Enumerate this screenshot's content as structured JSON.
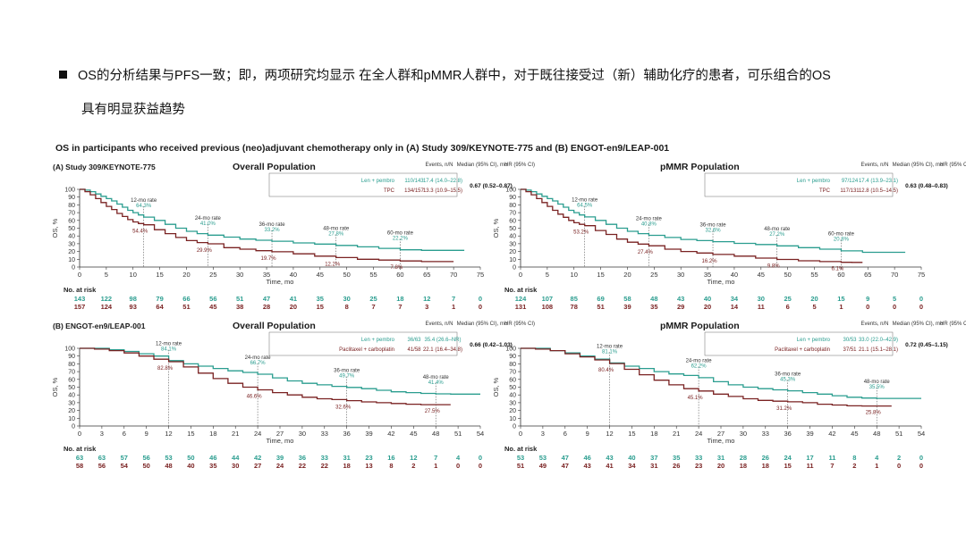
{
  "slide": {
    "bullet_line1": "OS的分析结果与PFS一致；即，两项研究均显示 在全人群和pMMR人群中，对于既往接受过（新）辅助化疗的患者，可乐组合的OS",
    "bullet_line2": "具有明显获益趋势"
  },
  "figure": {
    "title": "OS in participants who received previous (neo)adjuvant chemotherapy only in (A) Study 309/KEYNOTE-775 and (B) ENGOT-en9/LEAP-001",
    "study_a_label": "(A) Study 309/KEYNOTE-775",
    "study_b_label": "(B) ENGOT-en9/LEAP-001"
  },
  "colors": {
    "lenpembro": "#2a9d8f",
    "control": "#7a2222",
    "axis": "#333333",
    "guide": "#555555"
  },
  "chart_data": [
    {
      "type": "line",
      "title": "Overall Population",
      "ylabel": "OS, %",
      "xlabel": "Time, mo",
      "xlim": [
        0,
        75
      ],
      "ylim": [
        0,
        100
      ],
      "xticks": [
        0,
        5,
        10,
        15,
        20,
        25,
        30,
        35,
        40,
        45,
        50,
        55,
        60,
        65,
        70,
        75
      ],
      "yticks": [
        0,
        10,
        20,
        30,
        40,
        50,
        60,
        70,
        80,
        90,
        100
      ],
      "table_header": {
        "events": "Events, n/N",
        "median": "Median (95% CI), mo",
        "hr": "HR (95% CI)"
      },
      "hr": "0.67 (0.52–0.87)",
      "landmarks": [
        {
          "label": "12-mo rate",
          "x": 12,
          "lp": "64.3%",
          "ctrl": "54.4%"
        },
        {
          "label": "24-mo rate",
          "x": 24,
          "lp": "41.0%",
          "ctrl": "29.9%"
        },
        {
          "label": "36-mo rate",
          "x": 36,
          "lp": "33.2%",
          "ctrl": "19.7%"
        },
        {
          "label": "48-mo rate",
          "x": 48,
          "lp": "27.8%",
          "ctrl": "12.2%"
        },
        {
          "label": "60-mo rate",
          "x": 60,
          "lp": "22.2%",
          "ctrl": "7.8%"
        }
      ],
      "series": [
        {
          "name": "Len + pembro",
          "events": "110/143",
          "median": "17.4 (14.0–22.8)",
          "x": [
            0,
            1,
            2,
            3,
            4,
            5,
            6,
            7,
            8,
            9,
            10,
            11,
            12,
            14,
            16,
            18,
            20,
            22,
            24,
            27,
            30,
            33,
            36,
            40,
            44,
            48,
            52,
            56,
            60,
            64,
            68,
            72
          ],
          "y": [
            100,
            99,
            97,
            94,
            91,
            88,
            85,
            81,
            77,
            73,
            70,
            67,
            64.3,
            60,
            55,
            50,
            46,
            43,
            41,
            38.5,
            36,
            34.5,
            33.2,
            31,
            29.5,
            27.8,
            26,
            24,
            22.2,
            21.5,
            21.5,
            21.5
          ],
          "risk": [
            143,
            122,
            98,
            79,
            66,
            56,
            51,
            47,
            41,
            35,
            30,
            25,
            18,
            12,
            7,
            0
          ]
        },
        {
          "name": "TPC",
          "events": "134/157",
          "median": "13.3 (10.9–15.5)",
          "x": [
            0,
            1,
            2,
            3,
            4,
            5,
            6,
            7,
            8,
            9,
            10,
            11,
            12,
            14,
            16,
            18,
            20,
            22,
            24,
            27,
            30,
            33,
            36,
            40,
            44,
            48,
            52,
            56,
            60,
            64,
            68,
            70
          ],
          "y": [
            100,
            97,
            93,
            88,
            83,
            78,
            74,
            69,
            65,
            61,
            58,
            56,
            54.4,
            48,
            43,
            38,
            34,
            31.5,
            29.9,
            25,
            23,
            21,
            19.7,
            17,
            14,
            12.2,
            10,
            9,
            7.8,
            7,
            7,
            7
          ],
          "risk": [
            157,
            124,
            93,
            64,
            51,
            45,
            38,
            28,
            20,
            15,
            8,
            7,
            7,
            3,
            1,
            0
          ]
        }
      ]
    },
    {
      "type": "line",
      "title": "pMMR Population",
      "ylabel": "OS, %",
      "xlabel": "Time, mo",
      "xlim": [
        0,
        75
      ],
      "ylim": [
        0,
        100
      ],
      "xticks": [
        0,
        5,
        10,
        15,
        20,
        25,
        30,
        35,
        40,
        45,
        50,
        55,
        60,
        65,
        70,
        75
      ],
      "yticks": [
        0,
        10,
        20,
        30,
        40,
        50,
        60,
        70,
        80,
        90,
        100
      ],
      "table_header": {
        "events": "Events, n/N",
        "median": "Median (95% CI), mo",
        "hr": "HR (95% CI)"
      },
      "hr": "0.63 (0.48–0.83)",
      "landmarks": [
        {
          "label": "12-mo rate",
          "x": 12,
          "lp": "64.5%",
          "ctrl": "53.2%"
        },
        {
          "label": "24-mo rate",
          "x": 24,
          "lp": "40.8%",
          "ctrl": "27.4%"
        },
        {
          "label": "36-mo rate",
          "x": 36,
          "lp": "32.6%",
          "ctrl": "16.2%"
        },
        {
          "label": "48-mo rate",
          "x": 48,
          "lp": "27.2%",
          "ctrl": "9.8%"
        },
        {
          "label": "60-mo rate",
          "x": 60,
          "lp": "20.8%",
          "ctrl": "6.1%"
        }
      ],
      "series": [
        {
          "name": "Len + pembro",
          "events": "97/124",
          "median": "17.4 (13.9–23.1)",
          "x": [
            0,
            1,
            2,
            3,
            4,
            5,
            6,
            7,
            8,
            9,
            10,
            11,
            12,
            14,
            16,
            18,
            20,
            22,
            24,
            27,
            30,
            33,
            36,
            40,
            44,
            48,
            52,
            56,
            60,
            64,
            68,
            72
          ],
          "y": [
            100,
            99,
            97,
            94,
            91,
            88,
            85,
            81,
            77,
            73,
            70,
            67,
            64.5,
            60,
            55,
            50,
            46,
            43,
            40.8,
            38,
            35.5,
            34,
            32.6,
            30.5,
            29,
            27.2,
            25,
            23,
            20.8,
            19,
            19,
            19
          ],
          "risk": [
            124,
            107,
            85,
            69,
            58,
            48,
            43,
            40,
            34,
            30,
            25,
            20,
            15,
            9,
            5,
            0
          ]
        },
        {
          "name": "TPC",
          "events": "117/131",
          "median": "12.8 (10.5–14.5)",
          "x": [
            0,
            1,
            2,
            3,
            4,
            5,
            6,
            7,
            8,
            9,
            10,
            11,
            12,
            14,
            16,
            18,
            20,
            22,
            24,
            27,
            30,
            33,
            36,
            40,
            44,
            48,
            52,
            56,
            60,
            62,
            64
          ],
          "y": [
            100,
            97,
            93,
            88,
            83,
            78,
            73,
            68,
            64,
            60,
            57,
            55,
            53.2,
            47,
            42,
            36,
            32,
            29.5,
            27.4,
            23,
            20,
            18,
            16.2,
            14,
            11.5,
            9.8,
            8,
            7,
            6.1,
            6,
            6
          ],
          "risk": [
            131,
            108,
            78,
            51,
            39,
            35,
            29,
            20,
            14,
            11,
            6,
            5,
            1,
            0,
            0,
            0
          ]
        }
      ]
    },
    {
      "type": "line",
      "title": "Overall Population",
      "ylabel": "OS, %",
      "xlabel": "Time, mo",
      "xlim": [
        0,
        54
      ],
      "ylim": [
        0,
        100
      ],
      "xticks": [
        0,
        3,
        6,
        9,
        12,
        15,
        18,
        21,
        24,
        27,
        30,
        33,
        36,
        39,
        42,
        45,
        48,
        51,
        54
      ],
      "yticks": [
        0,
        10,
        20,
        30,
        40,
        50,
        60,
        70,
        80,
        90,
        100
      ],
      "table_header": {
        "events": "Events, n/N",
        "median": "Median (95% CI), mo",
        "hr": "HR (95% CI)"
      },
      "hr": "0.66 (0.42–1.03)",
      "landmarks": [
        {
          "label": "12-mo rate",
          "x": 12,
          "lp": "84.1%",
          "ctrl": "82.8%"
        },
        {
          "label": "24-mo rate",
          "x": 24,
          "lp": "66.7%",
          "ctrl": "46.6%"
        },
        {
          "label": "36-mo rate",
          "x": 36,
          "lp": "49.7%",
          "ctrl": "32.6%"
        },
        {
          "label": "48-mo rate",
          "x": 48,
          "lp": "41.4%",
          "ctrl": "27.5%"
        }
      ],
      "series": [
        {
          "name": "Len + pembro",
          "events": "36/63",
          "median": "35.4 (26.6–NR)",
          "x": [
            0,
            2,
            4,
            6,
            8,
            10,
            12,
            14,
            16,
            18,
            20,
            22,
            24,
            26,
            28,
            30,
            32,
            34,
            36,
            38,
            40,
            42,
            44,
            46,
            48,
            50,
            52,
            54
          ],
          "y": [
            100,
            100,
            98,
            96,
            93,
            90,
            84.1,
            80,
            77,
            74,
            71,
            69,
            66.7,
            62,
            58,
            55,
            53,
            51,
            49.7,
            48,
            46,
            44,
            43,
            42,
            41.4,
            41,
            41,
            41
          ],
          "risk": [
            63,
            63,
            57,
            56,
            53,
            50,
            46,
            44,
            42,
            39,
            36,
            33,
            31,
            23,
            16,
            12,
            7,
            4,
            0
          ]
        },
        {
          "name": "Paclitaxel + carboplatin",
          "events": "41/58",
          "median": "22.1 (16.4–34.8)",
          "x": [
            0,
            2,
            4,
            6,
            8,
            10,
            12,
            14,
            16,
            18,
            20,
            22,
            24,
            26,
            28,
            30,
            32,
            34,
            36,
            38,
            40,
            42,
            44,
            46,
            48,
            50
          ],
          "y": [
            100,
            99,
            97,
            94,
            90,
            86,
            82.8,
            76,
            68,
            61,
            55,
            50,
            46.6,
            43,
            40,
            37,
            35,
            34,
            32.6,
            31,
            30,
            29,
            28,
            27.5,
            27.5,
            27.5
          ],
          "risk": [
            58,
            56,
            54,
            50,
            48,
            40,
            35,
            30,
            27,
            24,
            22,
            22,
            18,
            13,
            8,
            2,
            1,
            0,
            0
          ]
        }
      ]
    },
    {
      "type": "line",
      "title": "pMMR Population",
      "ylabel": "OS, %",
      "xlabel": "Time, mo",
      "xlim": [
        0,
        54
      ],
      "ylim": [
        0,
        100
      ],
      "xticks": [
        0,
        3,
        6,
        9,
        12,
        15,
        18,
        21,
        24,
        27,
        30,
        33,
        36,
        39,
        42,
        45,
        48,
        51,
        54
      ],
      "yticks": [
        0,
        10,
        20,
        30,
        40,
        50,
        60,
        70,
        80,
        90,
        100
      ],
      "table_header": {
        "events": "Events, n/N",
        "median": "Median (95% CI), mo",
        "hr": "HR (95% CI)"
      },
      "hr": "0.72 (0.45–1.15)",
      "landmarks": [
        {
          "label": "12-mo rate",
          "x": 12,
          "lp": "81.1%",
          "ctrl": "80.4%"
        },
        {
          "label": "24-mo rate",
          "x": 24,
          "lp": "62.2%",
          "ctrl": "45.1%"
        },
        {
          "label": "36-mo rate",
          "x": 36,
          "lp": "45.3%",
          "ctrl": "31.2%"
        },
        {
          "label": "48-mo rate",
          "x": 48,
          "lp": "35.5%",
          "ctrl": "25.8%"
        }
      ],
      "series": [
        {
          "name": "Len + pembro",
          "events": "30/53",
          "median": "33.0 (22.0–42.9)",
          "x": [
            0,
            2,
            4,
            6,
            8,
            10,
            12,
            14,
            16,
            18,
            20,
            22,
            24,
            26,
            28,
            30,
            32,
            34,
            36,
            38,
            40,
            42,
            44,
            46,
            48,
            50,
            52,
            54
          ],
          "y": [
            100,
            100,
            97,
            94,
            90,
            86,
            81.1,
            77,
            74,
            70,
            67,
            65,
            62.2,
            57,
            53,
            50,
            48,
            46.5,
            45.3,
            43,
            41,
            39,
            37,
            36,
            35.5,
            35.5,
            35.5,
            35.5
          ],
          "risk": [
            53,
            53,
            47,
            46,
            43,
            40,
            37,
            35,
            33,
            31,
            28,
            26,
            24,
            17,
            11,
            8,
            4,
            2,
            0
          ]
        },
        {
          "name": "Paclitaxel + carboplatin",
          "events": "37/51",
          "median": "21.1 (15.1–28.1)",
          "x": [
            0,
            2,
            4,
            6,
            8,
            10,
            12,
            14,
            16,
            18,
            20,
            22,
            24,
            26,
            28,
            30,
            32,
            34,
            36,
            38,
            40,
            42,
            44,
            46,
            48,
            50
          ],
          "y": [
            100,
            99,
            97,
            93,
            89,
            85,
            80.4,
            73,
            66,
            59,
            53,
            48,
            45.1,
            41,
            38,
            35,
            33,
            32,
            31.2,
            30,
            28,
            27,
            26,
            25.8,
            25.8,
            25.8
          ],
          "risk": [
            51,
            49,
            47,
            43,
            41,
            34,
            31,
            26,
            23,
            20,
            18,
            18,
            15,
            11,
            7,
            2,
            1,
            0,
            0
          ]
        }
      ]
    }
  ]
}
